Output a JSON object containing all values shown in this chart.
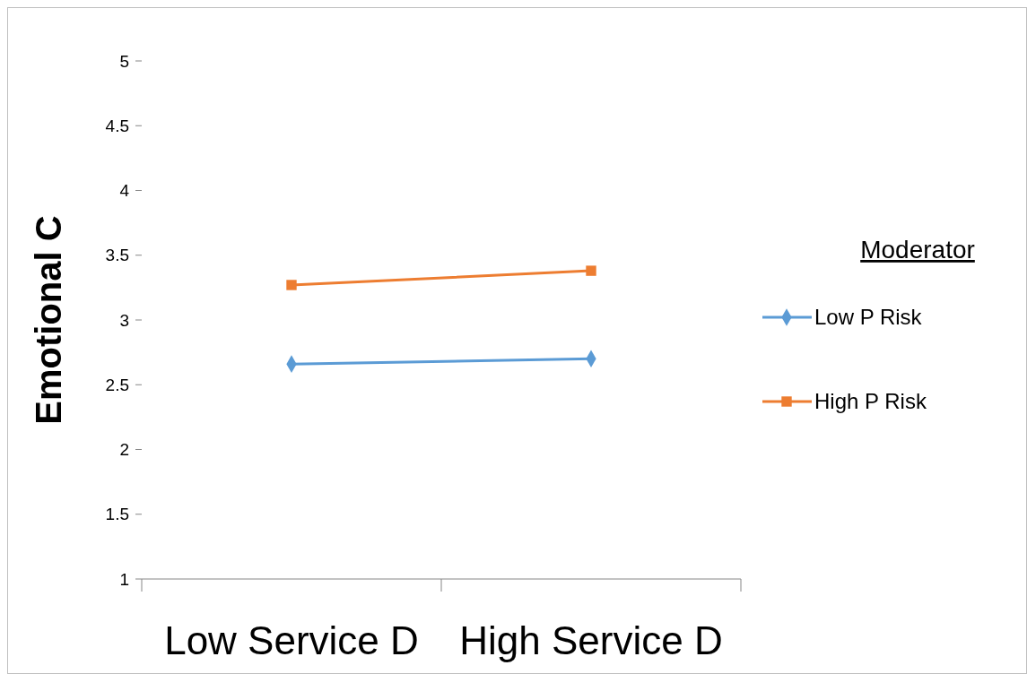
{
  "chart_data": {
    "type": "line",
    "ylabel": "Emotional C",
    "legend_title": "Moderator",
    "categories": [
      "Low Service D",
      "High Service D"
    ],
    "series": [
      {
        "name": "Low P Risk",
        "color": "#5b9bd5",
        "marker": "diamond",
        "values": [
          2.66,
          2.7
        ]
      },
      {
        "name": "High P Risk",
        "color": "#ed7d31",
        "marker": "square",
        "values": [
          3.27,
          3.38
        ]
      }
    ],
    "ylim": [
      1,
      5
    ],
    "yticks": [
      1,
      1.5,
      2,
      2.5,
      3,
      3.5,
      4,
      4.5,
      5
    ],
    "legend": "right",
    "grid": false,
    "line_style": "solid"
  }
}
